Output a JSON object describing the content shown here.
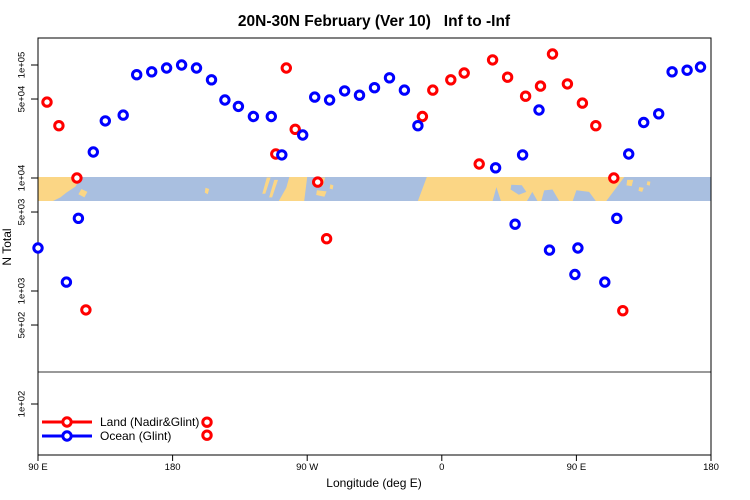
{
  "chart": {
    "title": "20N-30N February (Ver 10)   Inf to -Inf",
    "xlabel": "Longitude (deg E)",
    "ylabel": "N Total"
  },
  "chart_data": {
    "type": "scatter",
    "title": "20N-30N February (Ver 10)   Inf to -Inf",
    "xlabel": "Longitude (deg E)",
    "ylabel": "N Total",
    "x_axis": {
      "min": 90,
      "max": 540,
      "ticks": [
        {
          "lon": 90,
          "label": "90 E"
        },
        {
          "lon": 180,
          "label": "180"
        },
        {
          "lon": 270,
          "label": "90 W"
        },
        {
          "lon": 360,
          "label": "0"
        },
        {
          "lon": 450,
          "label": "90 E"
        },
        {
          "lon": 540,
          "label": "180"
        }
      ]
    },
    "y_axis": {
      "scale": "log",
      "ticks": [
        {
          "value": 100000,
          "label": "1e+05"
        },
        {
          "value": 50000,
          "label": "5e+04"
        },
        {
          "value": 10000,
          "label": "1e+04"
        },
        {
          "value": 5000,
          "label": "5e+03"
        },
        {
          "value": 1000,
          "label": "1e+03"
        },
        {
          "value": 500,
          "label": "5e+02"
        },
        {
          "value": 100,
          "label": "1e+02"
        }
      ]
    },
    "ref_line_value": 192,
    "ref_line_color": "#999999",
    "map_band": {
      "value_top": 10000,
      "value_bottom": 6100,
      "ocean_color": "#A9BFE0",
      "land_color": "#FBD685",
      "land_polygons": [
        [
          [
            90,
            0
          ],
          [
            119,
            0
          ],
          [
            115,
            0.4
          ],
          [
            109,
            0.65
          ],
          [
            105,
            0.85
          ],
          [
            100,
            1
          ],
          [
            90,
            1
          ]
        ],
        [
          [
            119,
            0.5
          ],
          [
            123,
            0.62
          ],
          [
            121,
            0.85
          ],
          [
            117,
            0.72
          ]
        ],
        [
          [
            202,
            0.45
          ],
          [
            204.5,
            0.5
          ],
          [
            203.5,
            0.72
          ],
          [
            201.5,
            0.65
          ]
        ],
        [
          [
            243,
            0.02
          ],
          [
            245.5,
            0.02
          ],
          [
            242,
            0.7
          ],
          [
            240,
            0.7
          ]
        ],
        [
          [
            248,
            0.12
          ],
          [
            250.5,
            0.12
          ],
          [
            246.5,
            0.85
          ],
          [
            244.5,
            0.85
          ]
        ],
        [
          [
            258,
            0
          ],
          [
            270,
            0
          ],
          [
            268,
            1
          ],
          [
            251,
            1
          ],
          [
            256,
            0.45
          ]
        ],
        [
          [
            279,
            0.02
          ],
          [
            282,
            0.02
          ],
          [
            280.5,
            0.38
          ],
          [
            278.5,
            0.3
          ]
        ],
        [
          [
            276.5,
            0.55
          ],
          [
            283,
            0.6
          ],
          [
            281.5,
            0.82
          ],
          [
            276,
            0.75
          ]
        ],
        [
          [
            285.5,
            0.3
          ],
          [
            287.5,
            0.35
          ],
          [
            287,
            0.52
          ],
          [
            285,
            0.48
          ]
        ],
        [
          [
            350,
            0
          ],
          [
            482,
            0
          ],
          [
            470,
            1
          ],
          [
            463,
            1
          ],
          [
            458.5,
            0.62
          ],
          [
            450,
            0.55
          ],
          [
            447.5,
            1
          ],
          [
            438.5,
            1
          ],
          [
            434,
            0.52
          ],
          [
            428.5,
            0.56
          ],
          [
            426.5,
            1
          ],
          [
            424,
            1
          ],
          [
            420.5,
            0.62
          ],
          [
            417,
            1
          ],
          [
            399.5,
            1
          ],
          [
            396.5,
            0.42
          ],
          [
            394,
            1
          ],
          [
            344,
            1
          ]
        ],
        [
          [
            484,
            0.12
          ],
          [
            488,
            0.12
          ],
          [
            487,
            0.38
          ],
          [
            483.5,
            0.35
          ]
        ],
        [
          [
            492,
            0.42
          ],
          [
            495,
            0.45
          ],
          [
            494,
            0.62
          ],
          [
            491.5,
            0.58
          ]
        ],
        [
          [
            497.5,
            0.18
          ],
          [
            499.5,
            0.2
          ],
          [
            499,
            0.36
          ],
          [
            497,
            0.33
          ]
        ]
      ],
      "water_overlays": [
        [
          [
            406.5,
            0.32
          ],
          [
            413.5,
            0.34
          ],
          [
            416.5,
            0.62
          ],
          [
            411.5,
            0.74
          ],
          [
            406,
            0.52
          ]
        ]
      ]
    },
    "series": [
      {
        "name": "Land (Nadir&Glint)",
        "color": "#FF0000",
        "points": [
          [
            96,
            47000
          ],
          [
            104,
            29000
          ],
          [
            116,
            10000
          ],
          [
            122,
            680
          ],
          [
            203,
            69
          ],
          [
            203,
            53
          ],
          [
            249,
            16300
          ],
          [
            256,
            94000
          ],
          [
            262,
            27000
          ],
          [
            277,
            9200
          ],
          [
            283,
            2900
          ],
          [
            347,
            35000
          ],
          [
            354,
            60000
          ],
          [
            366,
            74000
          ],
          [
            375,
            85000
          ],
          [
            385,
            13300
          ],
          [
            394,
            111000
          ],
          [
            404,
            78000
          ],
          [
            416,
            53000
          ],
          [
            426,
            65000
          ],
          [
            434,
            125000
          ],
          [
            444,
            68000
          ],
          [
            454,
            46000
          ],
          [
            463,
            29000
          ],
          [
            475,
            10000
          ],
          [
            481,
            670
          ]
        ]
      },
      {
        "name": "Ocean (Glint)",
        "color": "#0000FF",
        "points": [
          [
            90,
            2400
          ],
          [
            109,
            1200
          ],
          [
            117,
            4400
          ],
          [
            127,
            17000
          ],
          [
            135,
            32000
          ],
          [
            147,
            36000
          ],
          [
            156,
            82000
          ],
          [
            166,
            87000
          ],
          [
            176,
            94000
          ],
          [
            186,
            100000
          ],
          [
            196,
            94000
          ],
          [
            206,
            74000
          ],
          [
            215,
            49000
          ],
          [
            224,
            43000
          ],
          [
            234,
            35000
          ],
          [
            246,
            35000
          ],
          [
            253,
            16000
          ],
          [
            267,
            24000
          ],
          [
            275,
            52000
          ],
          [
            285,
            49000
          ],
          [
            295,
            59000
          ],
          [
            305,
            54000
          ],
          [
            315,
            63000
          ],
          [
            325,
            77000
          ],
          [
            335,
            60000
          ],
          [
            344,
            29000
          ],
          [
            396,
            12300
          ],
          [
            409,
            3900
          ],
          [
            414,
            16000
          ],
          [
            425,
            40000
          ],
          [
            432,
            2300
          ],
          [
            449,
            1400
          ],
          [
            451,
            2400
          ],
          [
            469,
            1200
          ],
          [
            477,
            4400
          ],
          [
            485,
            16300
          ],
          [
            495,
            31000
          ],
          [
            505,
            37000
          ],
          [
            514,
            87000
          ],
          [
            524,
            90000
          ],
          [
            533,
            96000
          ]
        ]
      }
    ],
    "legend": {
      "position": "bottom-left",
      "entries": [
        {
          "label": "Land (Nadir&Glint)",
          "color": "#FF0000"
        },
        {
          "label": "Ocean (Glint)",
          "color": "#0000FF"
        }
      ]
    }
  }
}
